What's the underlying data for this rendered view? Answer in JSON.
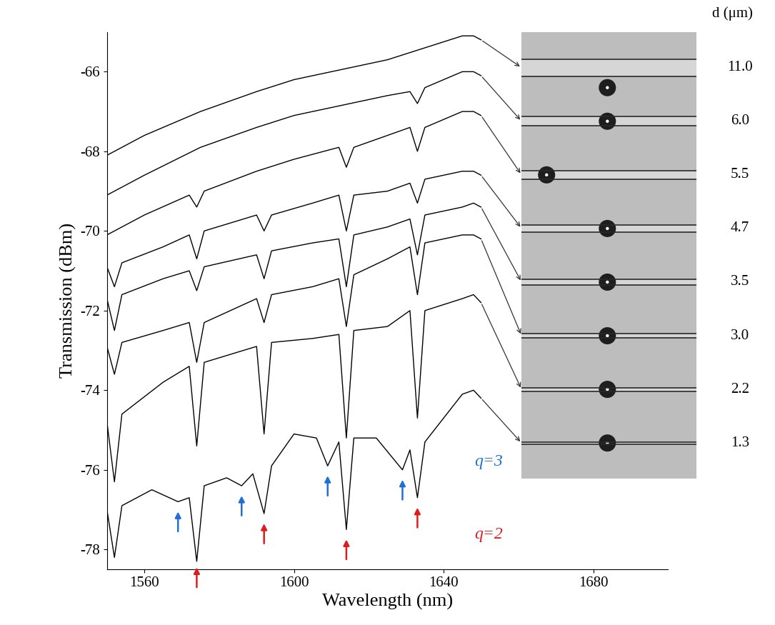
{
  "chart_data": {
    "type": "line",
    "x_label": "Wavelength (nm)",
    "y_label": "Transmission (dBm)",
    "panel_title": "d (μm)",
    "xlim": [
      1550,
      1700
    ],
    "ylim": [
      -78.5,
      -65.0
    ],
    "xticks": [
      1560,
      1600,
      1640,
      1680
    ],
    "yticks": [
      -66,
      -68,
      -70,
      -72,
      -74,
      -76,
      -78
    ],
    "grid": false,
    "series": [
      {
        "name": "11.0",
        "color": "#000000",
        "x": [
          1550,
          1560,
          1575,
          1590,
          1600,
          1615,
          1625,
          1635,
          1645,
          1648,
          1650
        ],
        "values": [
          -68.1,
          -67.6,
          -67.0,
          -66.5,
          -66.2,
          -65.9,
          -65.7,
          -65.4,
          -65.1,
          -65.1,
          -65.2
        ]
      },
      {
        "name": "6.0",
        "color": "#000000",
        "x": [
          1550,
          1560,
          1575,
          1590,
          1600,
          1615,
          1625,
          1631,
          1633,
          1635,
          1645,
          1648,
          1650
        ],
        "values": [
          -69.1,
          -68.6,
          -67.9,
          -67.4,
          -67.1,
          -66.8,
          -66.6,
          -66.5,
          -66.8,
          -66.4,
          -66.0,
          -66.0,
          -66.1
        ]
      },
      {
        "name": "5.5",
        "color": "#000000",
        "x": [
          1550,
          1560,
          1572,
          1574,
          1576,
          1590,
          1600,
          1612,
          1614,
          1616,
          1625,
          1631,
          1633,
          1635,
          1645,
          1648,
          1650
        ],
        "values": [
          -70.1,
          -69.6,
          -69.1,
          -69.4,
          -69.0,
          -68.5,
          -68.2,
          -67.9,
          -68.4,
          -67.9,
          -67.6,
          -67.4,
          -68.0,
          -67.4,
          -67.0,
          -67.0,
          -67.1
        ]
      },
      {
        "name": "4.7",
        "color": "#000000",
        "x": [
          1550,
          1552,
          1554,
          1565,
          1572,
          1574,
          1576,
          1590,
          1592,
          1594,
          1605,
          1612,
          1614,
          1616,
          1625,
          1631,
          1633,
          1635,
          1645,
          1648,
          1650
        ],
        "values": [
          -70.9,
          -71.4,
          -70.8,
          -70.4,
          -70.1,
          -70.7,
          -70.0,
          -69.6,
          -70.0,
          -69.6,
          -69.3,
          -69.1,
          -70.0,
          -69.1,
          -69.0,
          -68.8,
          -69.3,
          -68.7,
          -68.5,
          -68.5,
          -68.6
        ]
      },
      {
        "name": "3.5",
        "color": "#000000",
        "x": [
          1550,
          1552,
          1554,
          1565,
          1572,
          1574,
          1576,
          1590,
          1592,
          1594,
          1605,
          1612,
          1614,
          1616,
          1625,
          1631,
          1633,
          1635,
          1645,
          1648,
          1650
        ],
        "values": [
          -71.7,
          -72.5,
          -71.6,
          -71.2,
          -71.0,
          -71.5,
          -70.9,
          -70.6,
          -71.2,
          -70.5,
          -70.3,
          -70.2,
          -71.4,
          -70.1,
          -69.9,
          -69.7,
          -70.6,
          -69.6,
          -69.4,
          -69.3,
          -69.4
        ]
      },
      {
        "name": "3.0",
        "color": "#000000",
        "x": [
          1550,
          1552,
          1554,
          1565,
          1572,
          1574,
          1576,
          1590,
          1592,
          1594,
          1605,
          1612,
          1614,
          1616,
          1625,
          1631,
          1633,
          1635,
          1645,
          1648,
          1650
        ],
        "values": [
          -72.9,
          -73.6,
          -72.8,
          -72.5,
          -72.3,
          -73.3,
          -72.3,
          -71.7,
          -72.3,
          -71.6,
          -71.4,
          -71.2,
          -72.4,
          -71.1,
          -70.7,
          -70.4,
          -71.6,
          -70.3,
          -70.1,
          -70.1,
          -70.2
        ]
      },
      {
        "name": "2.2",
        "color": "#000000",
        "x": [
          1550,
          1552,
          1554,
          1565,
          1572,
          1574,
          1576,
          1590,
          1592,
          1594,
          1605,
          1612,
          1614,
          1616,
          1625,
          1631,
          1633,
          1635,
          1645,
          1648,
          1650
        ],
        "values": [
          -74.8,
          -76.3,
          -74.6,
          -73.8,
          -73.4,
          -75.4,
          -73.3,
          -72.9,
          -75.1,
          -72.8,
          -72.7,
          -72.6,
          -75.2,
          -72.5,
          -72.4,
          -72.0,
          -74.7,
          -72.0,
          -71.7,
          -71.6,
          -71.8
        ]
      },
      {
        "name": "1.3",
        "color": "#000000",
        "x": [
          1550,
          1552,
          1554,
          1562,
          1569,
          1572,
          1574,
          1576,
          1582,
          1586,
          1589,
          1592,
          1594,
          1600,
          1606,
          1609,
          1612,
          1614,
          1616,
          1622,
          1629,
          1631,
          1633,
          1635,
          1645,
          1648,
          1650
        ],
        "values": [
          -77.0,
          -78.2,
          -76.9,
          -76.5,
          -76.8,
          -76.7,
          -78.3,
          -76.4,
          -76.2,
          -76.4,
          -76.1,
          -77.1,
          -75.9,
          -75.1,
          -75.2,
          -75.9,
          -75.3,
          -77.5,
          -75.2,
          -75.2,
          -76.0,
          -75.5,
          -76.7,
          -75.3,
          -74.1,
          -74.0,
          -74.2
        ]
      }
    ],
    "annotations": [
      {
        "text": "q=3",
        "color": "#1f6fd6",
        "x": [
          1569,
          1586,
          1609,
          1629
        ],
        "y": [
          -77.0,
          -76.6,
          -76.1,
          -76.2
        ]
      },
      {
        "text": "q=2",
        "color": "#e01b1b",
        "x": [
          1574,
          1592,
          1614,
          1633
        ],
        "y": [
          -78.4,
          -77.3,
          -77.7,
          -76.9
        ]
      }
    ]
  }
}
